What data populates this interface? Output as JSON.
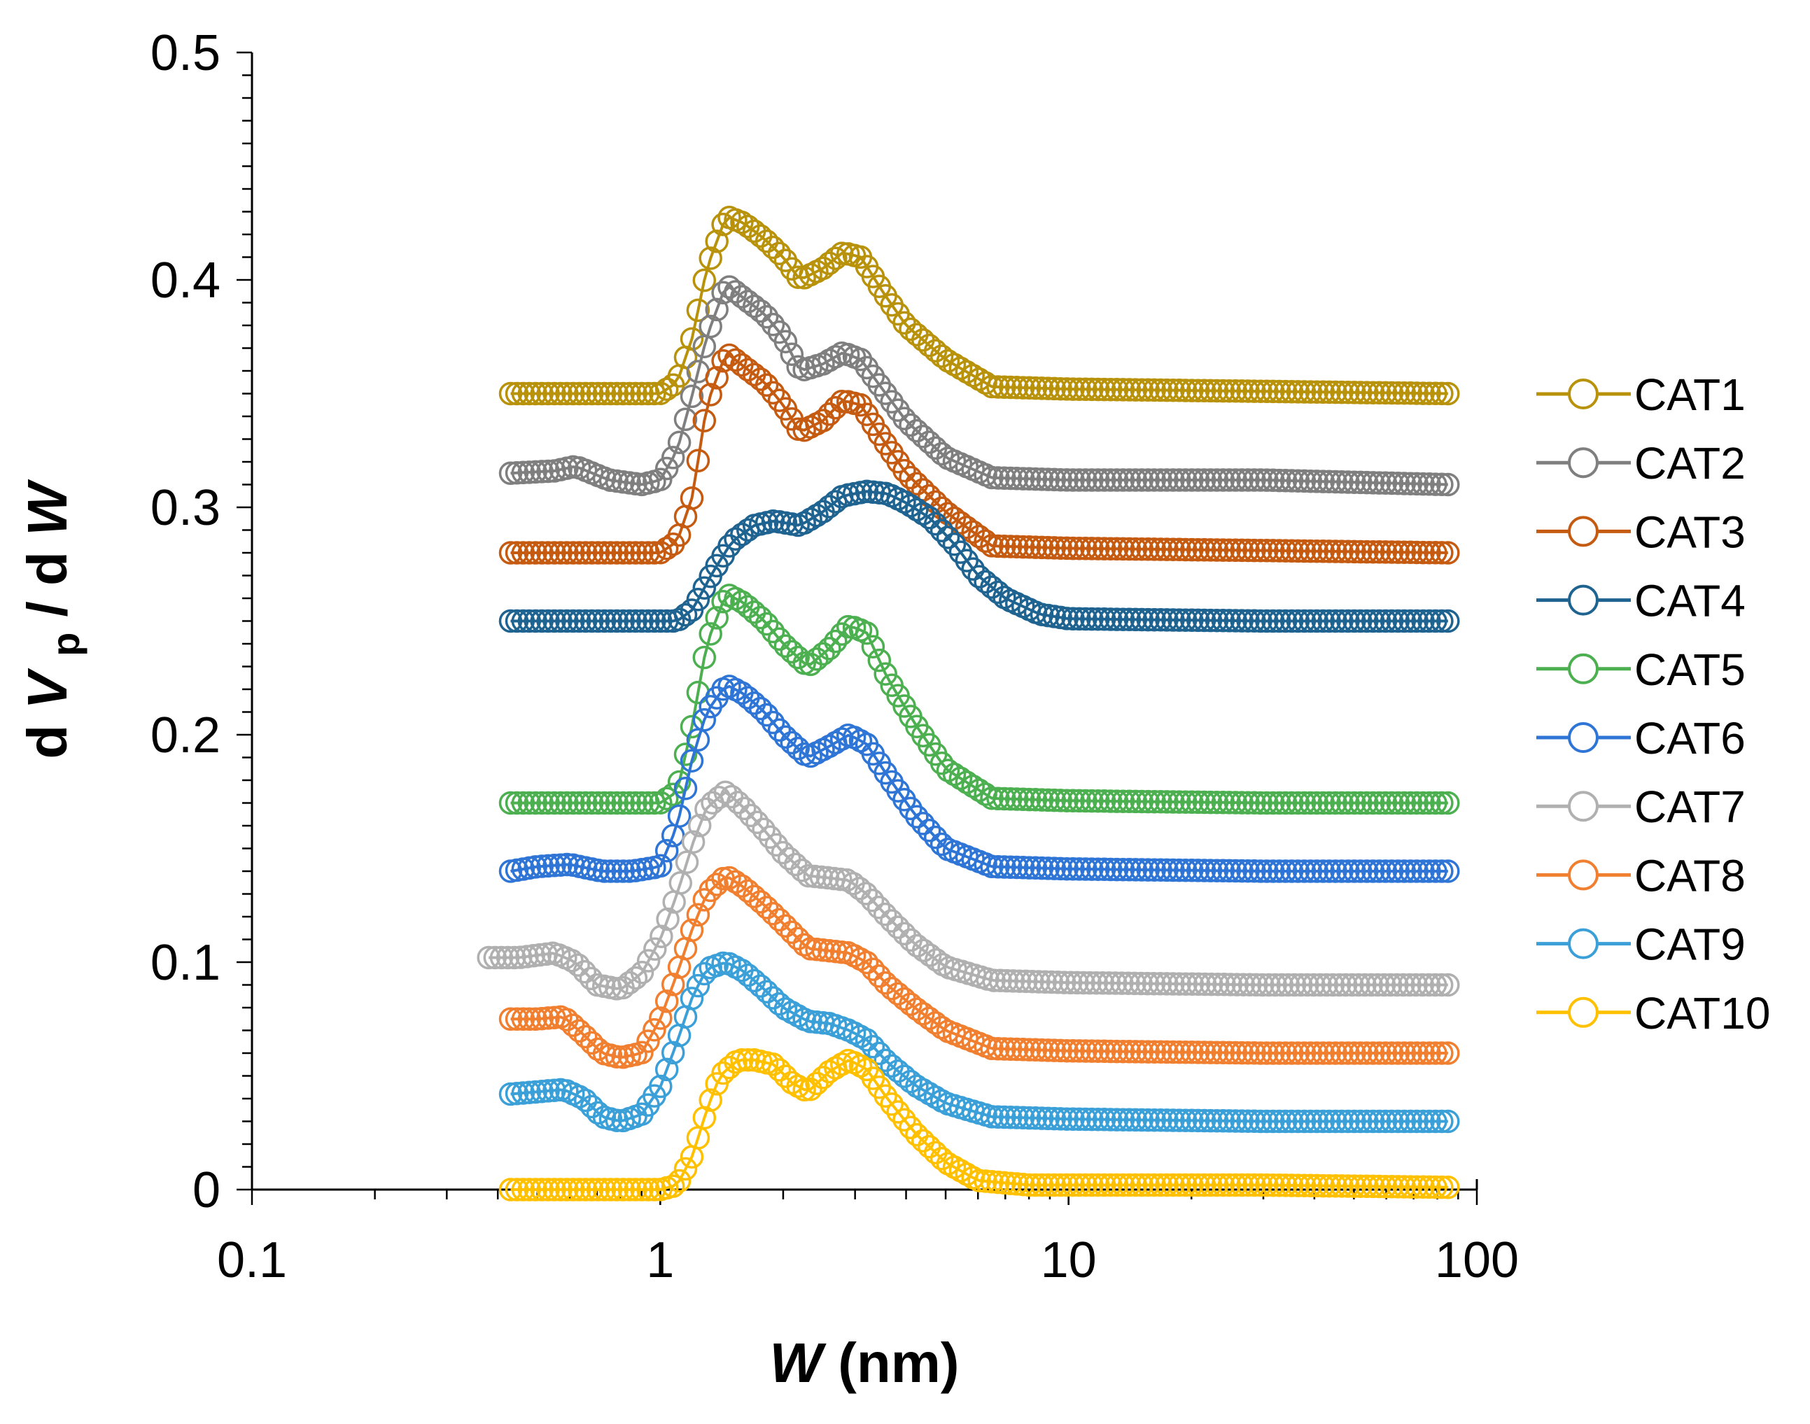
{
  "chart_data": {
    "type": "scatter",
    "title": "",
    "xlabel": {
      "main": "W",
      "unit": "(nm)"
    },
    "ylabel": {
      "prefix": "dV",
      "subscript": "p",
      "separator": " / d",
      "suffix": "W"
    },
    "xscale": "log",
    "xlim": [
      0.1,
      100
    ],
    "ylim": [
      0,
      0.5
    ],
    "x_ticks": [
      {
        "value": 0.1,
        "label": "0.1"
      },
      {
        "value": 1,
        "label": "1"
      },
      {
        "value": 10,
        "label": "10"
      },
      {
        "value": 100,
        "label": "100"
      }
    ],
    "y_ticks": [
      {
        "value": 0,
        "label": "0"
      },
      {
        "value": 0.1,
        "label": "0.1"
      },
      {
        "value": 0.2,
        "label": "0.2"
      },
      {
        "value": 0.3,
        "label": "0.3"
      },
      {
        "value": 0.4,
        "label": "0.4"
      },
      {
        "value": 0.5,
        "label": "0.5"
      }
    ],
    "legend_position": "right",
    "series": [
      {
        "name": "CAT1",
        "color": "#B8920A",
        "x": [
          0.43,
          0.6,
          0.8,
          1.0,
          1.1,
          1.2,
          1.3,
          1.45,
          1.6,
          1.8,
          2.0,
          2.2,
          2.5,
          2.8,
          3.1,
          3.5,
          4.0,
          5.0,
          6.5,
          10,
          30,
          85
        ],
        "y": [
          0.35,
          0.35,
          0.35,
          0.35,
          0.355,
          0.375,
          0.405,
          0.428,
          0.425,
          0.418,
          0.41,
          0.4,
          0.405,
          0.412,
          0.41,
          0.395,
          0.38,
          0.365,
          0.353,
          0.352,
          0.351,
          0.35
        ]
      },
      {
        "name": "CAT2",
        "color": "#7F7F7F",
        "x": [
          0.43,
          0.55,
          0.62,
          0.75,
          0.9,
          1.0,
          1.1,
          1.2,
          1.3,
          1.45,
          1.6,
          1.8,
          2.0,
          2.2,
          2.5,
          2.8,
          3.1,
          3.5,
          4.0,
          5.0,
          6.5,
          10,
          30,
          85
        ],
        "y": [
          0.315,
          0.316,
          0.318,
          0.312,
          0.31,
          0.312,
          0.325,
          0.35,
          0.375,
          0.398,
          0.392,
          0.385,
          0.375,
          0.36,
          0.363,
          0.368,
          0.365,
          0.352,
          0.338,
          0.322,
          0.313,
          0.312,
          0.312,
          0.31
        ]
      },
      {
        "name": "CAT3",
        "color": "#C55A11",
        "x": [
          0.43,
          0.6,
          0.8,
          1.0,
          1.1,
          1.2,
          1.3,
          1.45,
          1.6,
          1.8,
          2.0,
          2.2,
          2.5,
          2.8,
          3.1,
          3.5,
          4.0,
          5.0,
          6.5,
          10,
          30,
          85
        ],
        "y": [
          0.28,
          0.28,
          0.28,
          0.28,
          0.285,
          0.305,
          0.345,
          0.368,
          0.362,
          0.355,
          0.345,
          0.333,
          0.338,
          0.347,
          0.345,
          0.33,
          0.315,
          0.298,
          0.283,
          0.282,
          0.281,
          0.28
        ]
      },
      {
        "name": "CAT4",
        "color": "#1F6391",
        "x": [
          0.43,
          0.6,
          0.8,
          1.0,
          1.1,
          1.2,
          1.35,
          1.5,
          1.7,
          1.9,
          2.2,
          2.5,
          2.8,
          3.2,
          3.6,
          4.0,
          4.6,
          5.3,
          6.0,
          7.0,
          8.5,
          10,
          30,
          85
        ],
        "y": [
          0.25,
          0.25,
          0.25,
          0.25,
          0.25,
          0.255,
          0.272,
          0.285,
          0.292,
          0.294,
          0.292,
          0.298,
          0.305,
          0.307,
          0.306,
          0.302,
          0.295,
          0.283,
          0.27,
          0.26,
          0.253,
          0.251,
          0.25,
          0.25
        ]
      },
      {
        "name": "CAT5",
        "color": "#4CAF50",
        "x": [
          0.43,
          0.6,
          0.8,
          1.0,
          1.1,
          1.2,
          1.3,
          1.45,
          1.6,
          1.8,
          2.0,
          2.3,
          2.6,
          2.9,
          3.2,
          3.6,
          4.2,
          5.0,
          6.5,
          10,
          30,
          85
        ],
        "y": [
          0.17,
          0.17,
          0.17,
          0.17,
          0.175,
          0.205,
          0.24,
          0.262,
          0.258,
          0.25,
          0.24,
          0.23,
          0.238,
          0.248,
          0.245,
          0.225,
          0.205,
          0.185,
          0.172,
          0.171,
          0.17,
          0.17
        ]
      },
      {
        "name": "CAT6",
        "color": "#2E75D6",
        "x": [
          0.43,
          0.5,
          0.6,
          0.72,
          0.85,
          1.0,
          1.1,
          1.2,
          1.3,
          1.45,
          1.6,
          1.8,
          2.0,
          2.3,
          2.6,
          2.9,
          3.2,
          3.6,
          4.2,
          5.0,
          6.5,
          10,
          30,
          85
        ],
        "y": [
          0.14,
          0.142,
          0.143,
          0.14,
          0.14,
          0.142,
          0.16,
          0.19,
          0.21,
          0.222,
          0.218,
          0.21,
          0.2,
          0.19,
          0.195,
          0.2,
          0.196,
          0.182,
          0.165,
          0.15,
          0.142,
          0.141,
          0.14,
          0.14
        ]
      },
      {
        "name": "CAT7",
        "color": "#B0B0B0",
        "x": [
          0.38,
          0.45,
          0.55,
          0.62,
          0.7,
          0.8,
          0.9,
          1.0,
          1.1,
          1.2,
          1.3,
          1.45,
          1.6,
          1.8,
          2.0,
          2.3,
          2.6,
          2.9,
          3.2,
          3.6,
          4.2,
          5.0,
          6.5,
          10,
          30,
          85
        ],
        "y": [
          0.102,
          0.102,
          0.104,
          0.1,
          0.09,
          0.088,
          0.095,
          0.11,
          0.13,
          0.152,
          0.168,
          0.175,
          0.168,
          0.158,
          0.148,
          0.138,
          0.137,
          0.136,
          0.13,
          0.12,
          0.108,
          0.098,
          0.092,
          0.091,
          0.09,
          0.09
        ]
      },
      {
        "name": "CAT8",
        "color": "#F07F30",
        "x": [
          0.43,
          0.5,
          0.58,
          0.65,
          0.72,
          0.8,
          0.9,
          1.0,
          1.1,
          1.2,
          1.3,
          1.45,
          1.6,
          1.8,
          2.0,
          2.3,
          2.6,
          2.9,
          3.2,
          3.6,
          4.2,
          5.0,
          6.5,
          10,
          30,
          85
        ],
        "y": [
          0.075,
          0.075,
          0.076,
          0.068,
          0.06,
          0.058,
          0.06,
          0.075,
          0.095,
          0.115,
          0.13,
          0.138,
          0.133,
          0.125,
          0.117,
          0.106,
          0.105,
          0.104,
          0.1,
          0.09,
          0.08,
          0.07,
          0.062,
          0.061,
          0.06,
          0.06
        ]
      },
      {
        "name": "CAT9",
        "color": "#3CA0D8",
        "x": [
          0.43,
          0.5,
          0.58,
          0.65,
          0.72,
          0.8,
          0.9,
          1.0,
          1.1,
          1.2,
          1.3,
          1.45,
          1.6,
          1.8,
          2.0,
          2.3,
          2.6,
          2.9,
          3.2,
          3.6,
          4.2,
          5.0,
          6.5,
          10,
          30,
          85
        ],
        "y": [
          0.042,
          0.043,
          0.044,
          0.04,
          0.032,
          0.03,
          0.033,
          0.045,
          0.065,
          0.085,
          0.097,
          0.1,
          0.096,
          0.088,
          0.08,
          0.074,
          0.073,
          0.07,
          0.066,
          0.056,
          0.046,
          0.038,
          0.032,
          0.031,
          0.03,
          0.03
        ]
      },
      {
        "name": "CAT10",
        "color": "#FFC000",
        "x": [
          0.43,
          0.6,
          0.8,
          1.0,
          1.1,
          1.2,
          1.3,
          1.4,
          1.55,
          1.7,
          1.9,
          2.1,
          2.3,
          2.6,
          2.9,
          3.2,
          3.6,
          4.2,
          5.0,
          6.0,
          8.0,
          10,
          30,
          85
        ],
        "y": [
          0.0,
          0.0,
          0.0,
          0.0,
          0.002,
          0.015,
          0.035,
          0.05,
          0.057,
          0.057,
          0.055,
          0.047,
          0.043,
          0.052,
          0.057,
          0.053,
          0.04,
          0.025,
          0.012,
          0.004,
          0.002,
          0.002,
          0.002,
          0.001
        ]
      }
    ]
  }
}
